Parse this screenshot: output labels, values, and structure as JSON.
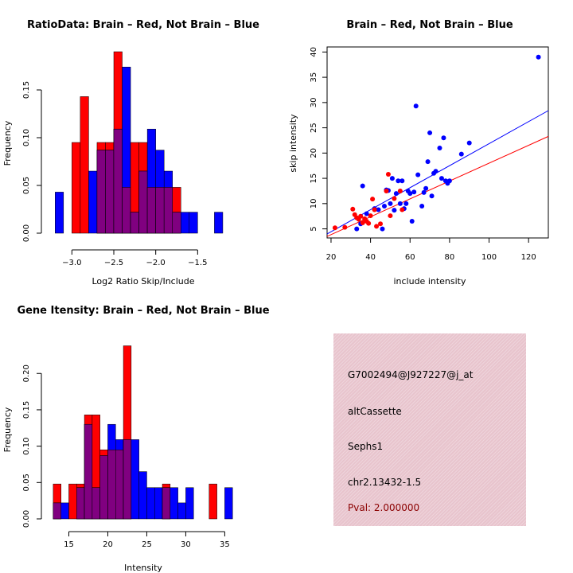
{
  "colors": {
    "brain": "#ff0000",
    "not_brain": "#0000ff",
    "overlap": "#800080",
    "box_bg": "#e8c4cd",
    "pval": "#8b0000"
  },
  "chart_data": [
    {
      "id": "ratio",
      "type": "bar",
      "title": "RatioData: Brain – Red, Not Brain – Blue",
      "xlabel": "Log2 Ratio Skip/Include",
      "ylabel": "Frequency",
      "xlim": [
        -3.25,
        -1.0
      ],
      "ylim": [
        0,
        0.195
      ],
      "xticks": [
        -3.0,
        -2.5,
        -2.0,
        -1.5
      ],
      "xtick_labels": [
        "−3.0",
        "−2.5",
        "−2.0",
        "−1.5"
      ],
      "yticks": [
        0.0,
        0.05,
        0.1,
        0.15
      ],
      "ytick_labels": [
        "0.00",
        "0.05",
        "0.10",
        "0.15"
      ],
      "bin_edges": [
        -3.2,
        -3.1,
        -3.0,
        -2.9,
        -2.8,
        -2.7,
        -2.6,
        -2.5,
        -2.4,
        -2.3,
        -2.2,
        -2.1,
        -2.0,
        -1.9,
        -1.8,
        -1.7,
        -1.6,
        -1.5,
        -1.4,
        -1.3,
        -1.2,
        -1.1
      ],
      "series": [
        {
          "name": "Brain",
          "color": "red",
          "values": [
            0,
            0,
            0.095,
            0.143,
            0,
            0.095,
            0.095,
            0.19,
            0.048,
            0.095,
            0.095,
            0.048,
            0.048,
            0.048,
            0.048,
            0,
            0,
            0,
            0,
            0,
            0
          ]
        },
        {
          "name": "Not Brain",
          "color": "blue",
          "values": [
            0.043,
            0,
            0,
            0,
            0.065,
            0.087,
            0.087,
            0.109,
            0.174,
            0.022,
            0.065,
            0.109,
            0.087,
            0.065,
            0.022,
            0.022,
            0.022,
            0,
            0,
            0.022,
            0
          ]
        }
      ]
    },
    {
      "id": "scatter",
      "type": "scatter",
      "title": "Brain – Red, Not Brain – Blue",
      "xlabel": "include intensity",
      "ylabel": "skip intensity",
      "xlim": [
        18,
        130
      ],
      "ylim": [
        3.2,
        41
      ],
      "xticks": [
        20,
        40,
        60,
        80,
        100,
        120
      ],
      "yticks": [
        5,
        10,
        15,
        20,
        25,
        30,
        35,
        40
      ],
      "series": [
        {
          "name": "Brain",
          "color": "red",
          "points": [
            [
              22,
              5.2
            ],
            [
              27,
              5.3
            ],
            [
              31,
              8.9
            ],
            [
              32,
              7.8
            ],
            [
              33,
              7.2
            ],
            [
              34,
              6.9
            ],
            [
              35,
              7.5
            ],
            [
              36,
              6.2
            ],
            [
              37,
              7.0
            ],
            [
              38,
              6.5
            ],
            [
              39,
              6.1
            ],
            [
              40,
              7.6
            ],
            [
              41,
              10.9
            ],
            [
              42,
              8.8
            ],
            [
              43,
              5.5
            ],
            [
              45,
              6.0
            ],
            [
              48,
              12.5
            ],
            [
              49,
              15.8
            ],
            [
              50,
              7.6
            ],
            [
              52,
              11.0
            ],
            [
              55,
              12.5
            ],
            [
              56,
              8.8
            ]
          ]
        },
        {
          "name": "Not Brain",
          "color": "blue",
          "points": [
            [
              33,
              5.0
            ],
            [
              35,
              6.0
            ],
            [
              36,
              13.5
            ],
            [
              38,
              8.0
            ],
            [
              42,
              9.0
            ],
            [
              44,
              8.8
            ],
            [
              46,
              5.0
            ],
            [
              47,
              9.5
            ],
            [
              48,
              12.7
            ],
            [
              49,
              12.6
            ],
            [
              50,
              10.0
            ],
            [
              51,
              15.0
            ],
            [
              52,
              8.7
            ],
            [
              53,
              12.0
            ],
            [
              54,
              14.5
            ],
            [
              55,
              10.0
            ],
            [
              56,
              14.5
            ],
            [
              57,
              9.0
            ],
            [
              58,
              10.0
            ],
            [
              59,
              12.5
            ],
            [
              60,
              12.0
            ],
            [
              61,
              6.5
            ],
            [
              62,
              12.3
            ],
            [
              63,
              29.3
            ],
            [
              64,
              15.7
            ],
            [
              66,
              9.5
            ],
            [
              67,
              12.2
            ],
            [
              68,
              13.0
            ],
            [
              69,
              18.3
            ],
            [
              70,
              24.0
            ],
            [
              71,
              11.5
            ],
            [
              72,
              16.0
            ],
            [
              73,
              16.4
            ],
            [
              75,
              21.0
            ],
            [
              76,
              15.0
            ],
            [
              77,
              23.0
            ],
            [
              78,
              14.5
            ],
            [
              79,
              14.0
            ],
            [
              80,
              14.5
            ],
            [
              86,
              19.8
            ],
            [
              90,
              22.0
            ],
            [
              125,
              39.0
            ]
          ]
        }
      ],
      "lines": [
        {
          "name": "Brain fit",
          "color": "red",
          "from": [
            18,
            3.5
          ],
          "to": [
            130,
            23.3
          ]
        },
        {
          "name": "Not Brain fit",
          "color": "blue",
          "from": [
            18,
            4.0
          ],
          "to": [
            130,
            28.4
          ]
        }
      ]
    },
    {
      "id": "intensity",
      "type": "bar",
      "title": "Gene Itensity: Brain – Red, Not Brain – Blue",
      "xlabel": "Intensity",
      "ylabel": "Frequency",
      "xlim": [
        12.5,
        37.0
      ],
      "ylim": [
        0,
        0.255
      ],
      "xticks": [
        15,
        20,
        25,
        30,
        35
      ],
      "xtick_labels": [
        "15",
        "20",
        "25",
        "30",
        "35"
      ],
      "yticks": [
        0.0,
        0.05,
        0.1,
        0.15,
        0.2
      ],
      "ytick_labels": [
        "0.00",
        "0.05",
        "0.10",
        "0.15",
        "0.20"
      ],
      "bin_edges": [
        13,
        14,
        15,
        16,
        17,
        18,
        19,
        20,
        21,
        22,
        23,
        24,
        25,
        26,
        27,
        28,
        29,
        30,
        31,
        32,
        33,
        34,
        35,
        36
      ],
      "series": [
        {
          "name": "Brain",
          "color": "red",
          "values": [
            0.048,
            0,
            0.048,
            0.048,
            0.143,
            0.143,
            0.095,
            0.095,
            0.095,
            0.238,
            0,
            0,
            0,
            0,
            0.048,
            0,
            0,
            0,
            0,
            0,
            0.048,
            0,
            0
          ]
        },
        {
          "name": "Not Brain",
          "color": "blue",
          "values": [
            0.022,
            0.022,
            0,
            0.043,
            0.13,
            0.043,
            0.087,
            0.13,
            0.109,
            0.109,
            0.109,
            0.065,
            0.043,
            0.043,
            0.043,
            0.043,
            0.022,
            0.043,
            0,
            0,
            0,
            0,
            0.043
          ]
        }
      ]
    }
  ],
  "info_box": {
    "probe_id": "G7002494@J927227@j_at",
    "event_type": "altCassette",
    "gene": "Sephs1",
    "location": "chr2.13432-1.5",
    "pval_text": "Pval: 2.000000"
  }
}
